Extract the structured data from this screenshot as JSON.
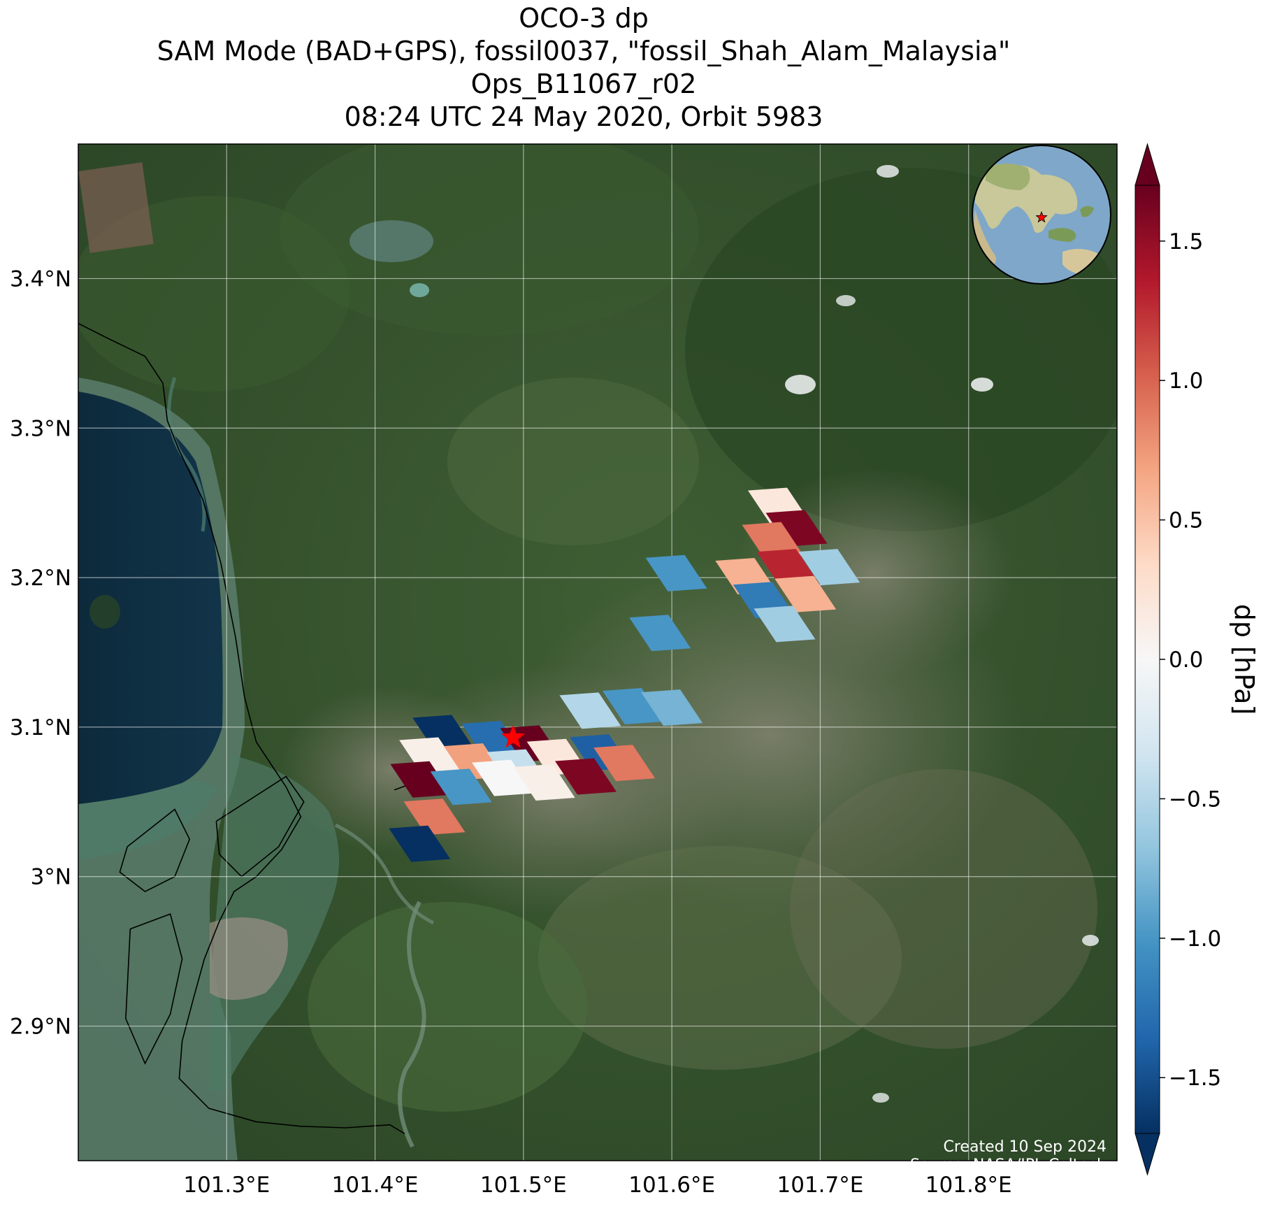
{
  "title": {
    "line1": "OCO-3 dp",
    "line2": "SAM Mode (BAD+GPS), fossil0037, \"fossil_Shah_Alam_Malaysia\"",
    "line3": "Ops_B11067_r02",
    "line4": "08:24 UTC 24 May 2020, Orbit 5983"
  },
  "map": {
    "lon_range": [
      101.2,
      101.9
    ],
    "lat_range": [
      2.81,
      3.49
    ],
    "lon_ticks": [
      {
        "value": 101.3,
        "label": "101.3°E"
      },
      {
        "value": 101.4,
        "label": "101.4°E"
      },
      {
        "value": 101.5,
        "label": "101.5°E"
      },
      {
        "value": 101.6,
        "label": "101.6°E"
      },
      {
        "value": 101.7,
        "label": "101.7°E"
      },
      {
        "value": 101.8,
        "label": "101.8°E"
      }
    ],
    "lat_ticks": [
      {
        "value": 3.4,
        "label": "3.4°N"
      },
      {
        "value": 3.3,
        "label": "3.3°N"
      },
      {
        "value": 3.2,
        "label": "3.2°N"
      },
      {
        "value": 3.1,
        "label": "3.1°N"
      },
      {
        "value": 3.0,
        "label": "3°N"
      },
      {
        "value": 2.9,
        "label": "2.9°N"
      }
    ],
    "target_marker": {
      "lon": 101.493,
      "lat": 3.093,
      "color": "#ff0000",
      "icon": "star-icon"
    },
    "footprints": [
      {
        "lon": 101.446,
        "lat": 3.096,
        "dp": -1.7
      },
      {
        "lon": 101.479,
        "lat": 3.092,
        "dp": -1.3
      },
      {
        "lon": 101.505,
        "lat": 3.089,
        "dp": 1.7
      },
      {
        "lon": 101.437,
        "lat": 3.081,
        "dp": 0.1
      },
      {
        "lon": 101.467,
        "lat": 3.077,
        "dp": 0.7
      },
      {
        "lon": 101.496,
        "lat": 3.073,
        "dp": -0.4
      },
      {
        "lon": 101.523,
        "lat": 3.08,
        "dp": 0.2
      },
      {
        "lon": 101.552,
        "lat": 3.083,
        "dp": -1.4
      },
      {
        "lon": 101.431,
        "lat": 3.065,
        "dp": 1.7
      },
      {
        "lon": 101.458,
        "lat": 3.06,
        "dp": -1.0
      },
      {
        "lon": 101.486,
        "lat": 3.066,
        "dp": 0.0
      },
      {
        "lon": 101.514,
        "lat": 3.063,
        "dp": 0.1
      },
      {
        "lon": 101.542,
        "lat": 3.067,
        "dp": 1.6
      },
      {
        "lon": 101.568,
        "lat": 3.076,
        "dp": 0.9
      },
      {
        "lon": 101.44,
        "lat": 3.04,
        "dp": 0.9
      },
      {
        "lon": 101.43,
        "lat": 3.022,
        "dp": -1.7
      },
      {
        "lon": 101.545,
        "lat": 3.111,
        "dp": -0.5
      },
      {
        "lon": 101.574,
        "lat": 3.114,
        "dp": -1.0
      },
      {
        "lon": 101.6,
        "lat": 3.113,
        "dp": -0.8
      },
      {
        "lon": 101.592,
        "lat": 3.163,
        "dp": -1.0
      },
      {
        "lon": 101.603,
        "lat": 3.203,
        "dp": -1.0
      },
      {
        "lon": 101.672,
        "lat": 3.248,
        "dp": 0.2
      },
      {
        "lon": 101.684,
        "lat": 3.233,
        "dp": 1.6
      },
      {
        "lon": 101.668,
        "lat": 3.225,
        "dp": 0.9
      },
      {
        "lon": 101.65,
        "lat": 3.201,
        "dp": 0.6
      },
      {
        "lon": 101.678,
        "lat": 3.207,
        "dp": 1.3
      },
      {
        "lon": 101.706,
        "lat": 3.207,
        "dp": -0.6
      },
      {
        "lon": 101.662,
        "lat": 3.185,
        "dp": -1.2
      },
      {
        "lon": 101.69,
        "lat": 3.189,
        "dp": 0.6
      },
      {
        "lon": 101.676,
        "lat": 3.169,
        "dp": -0.6
      }
    ],
    "coast_paths": [
      [
        [
          101.2,
          3.37
        ],
        [
          101.22,
          3.36
        ],
        [
          101.245,
          3.348
        ],
        [
          101.257,
          3.33
        ],
        [
          101.26,
          3.305
        ],
        [
          101.268,
          3.285
        ],
        [
          101.284,
          3.252
        ],
        [
          101.296,
          3.21
        ],
        [
          101.306,
          3.16
        ],
        [
          101.312,
          3.12
        ],
        [
          101.32,
          3.09
        ],
        [
          101.34,
          3.06
        ],
        [
          101.35,
          3.04
        ],
        [
          101.337,
          3.018
        ],
        [
          101.32,
          3.0
        ],
        [
          101.305,
          2.99
        ],
        [
          101.295,
          2.97
        ],
        [
          101.285,
          2.945
        ],
        [
          101.278,
          2.92
        ],
        [
          101.27,
          2.89
        ],
        [
          101.268,
          2.865
        ],
        [
          101.288,
          2.845
        ],
        [
          101.32,
          2.836
        ],
        [
          101.35,
          2.833
        ],
        [
          101.38,
          2.832
        ],
        [
          101.41,
          2.834
        ],
        [
          101.42,
          2.828
        ]
      ],
      [
        [
          101.233,
          3.02
        ],
        [
          101.265,
          3.045
        ],
        [
          101.275,
          3.025
        ],
        [
          101.265,
          3.0
        ],
        [
          101.245,
          2.99
        ],
        [
          101.228,
          3.003
        ],
        [
          101.233,
          3.02
        ]
      ],
      [
        [
          101.293,
          3.037
        ],
        [
          101.34,
          3.067
        ],
        [
          101.352,
          3.05
        ],
        [
          101.335,
          3.02
        ],
        [
          101.31,
          3.0
        ],
        [
          101.295,
          3.015
        ],
        [
          101.293,
          3.037
        ]
      ],
      [
        [
          101.235,
          2.965
        ],
        [
          101.262,
          2.975
        ],
        [
          101.27,
          2.945
        ],
        [
          101.262,
          2.908
        ],
        [
          101.245,
          2.875
        ],
        [
          101.232,
          2.905
        ],
        [
          101.235,
          2.965
        ]
      ],
      [
        [
          101.42,
          3.074
        ],
        [
          101.427,
          3.063
        ],
        [
          101.413,
          3.058
        ]
      ]
    ]
  },
  "inset_globe": {
    "center_marker_icon": "star-icon",
    "marker_color": "#ff0000"
  },
  "colorbar": {
    "label": "dp [hPa]",
    "vmin": -1.7,
    "vmax": 1.7,
    "colormap": "RdBu_r",
    "ticks": [
      {
        "value": 1.5,
        "label": "1.5"
      },
      {
        "value": 1.0,
        "label": "1.0"
      },
      {
        "value": 0.5,
        "label": "0.5"
      },
      {
        "value": 0.0,
        "label": "0.0"
      },
      {
        "value": -0.5,
        "label": "−0.5"
      },
      {
        "value": -1.0,
        "label": "−1.0"
      },
      {
        "value": -1.5,
        "label": "−1.5"
      }
    ],
    "stops": [
      "#053061",
      "#2166ac",
      "#4393c3",
      "#92c5de",
      "#d1e5f0",
      "#f7f7f7",
      "#fddbc7",
      "#f4a582",
      "#d6604d",
      "#b2182b",
      "#67001f"
    ]
  },
  "credit": {
    "line1": "Created 10 Sep 2024",
    "line2": "Source: NASA/JPL-Caltech"
  }
}
